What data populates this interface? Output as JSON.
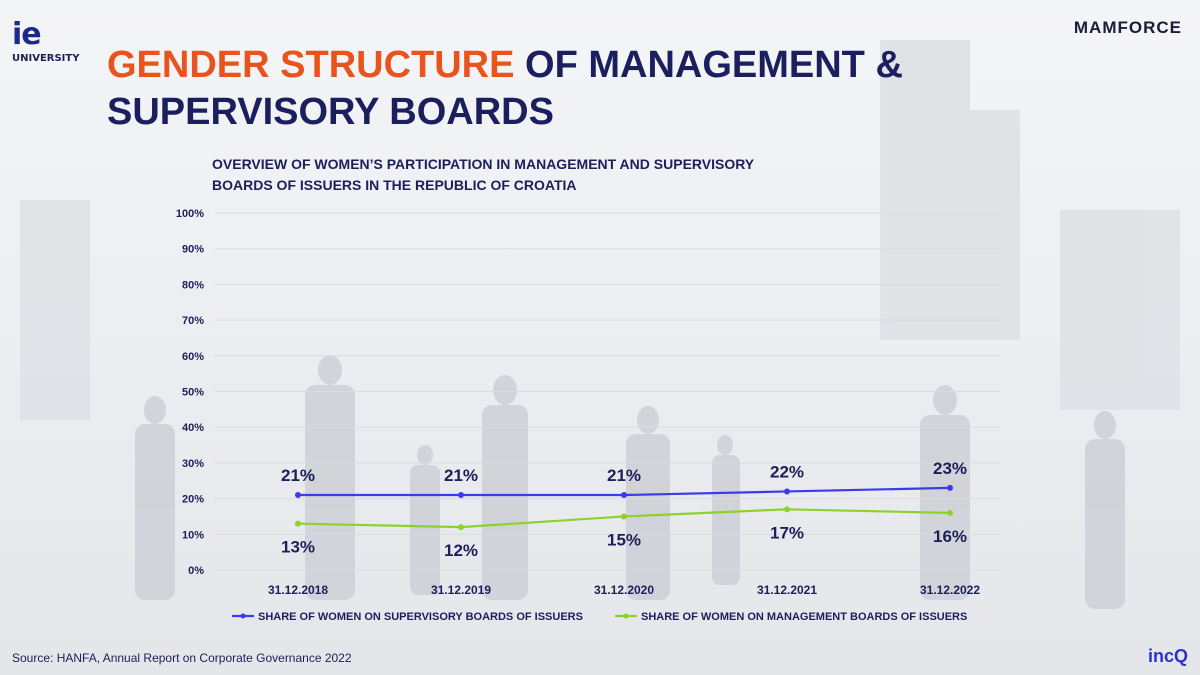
{
  "branding": {
    "ie_logo": "ie",
    "ie_sub": "UNIVERSITY",
    "mamforce": "MAMFORCE",
    "incq": "incQ"
  },
  "title": {
    "accent": "GENDER STRUCTURE",
    "rest": " OF MANAGEMENT & SUPERVISORY BOARDS"
  },
  "source": "Source: HANFA, Annual Report on Corporate Governance 2022",
  "colors": {
    "accent_orange": "#e9531d",
    "navy": "#1b1f5e",
    "supervisory_line": "#3b3be8",
    "management_line": "#8dd22c"
  },
  "chart_data": {
    "type": "line",
    "title": "OVERVIEW OF WOMEN’S PARTICIPATION IN MANAGEMENT AND SUPERVISORY BOARDS OF ISSUERS IN THE REPUBLIC OF CROATIA",
    "categories": [
      "31.12.2018",
      "31.12.2019",
      "31.12.2020",
      "31.12.2021",
      "31.12.2022"
    ],
    "series": [
      {
        "name": "SHARE OF WOMEN ON SUPERVISORY BOARDS OF ISSUERS",
        "values": [
          21,
          21,
          21,
          22,
          23
        ],
        "labels": [
          "21%",
          "21%",
          "21%",
          "22%",
          "23%"
        ],
        "label_position": "above",
        "color": "#3b3be8"
      },
      {
        "name": "SHARE OF WOMEN ON MANAGEMENT BOARDS OF ISSUERS",
        "values": [
          13,
          12,
          15,
          17,
          16
        ],
        "labels": [
          "13%",
          "12%",
          "15%",
          "17%",
          "16%"
        ],
        "label_position": "below",
        "color": "#8dd22c"
      }
    ],
    "y_ticks": [
      "0%",
      "10%",
      "20%",
      "30%",
      "40%",
      "50%",
      "60%",
      "70%",
      "80%",
      "90%",
      "100%"
    ],
    "ylim": [
      0,
      100
    ],
    "grid": true,
    "legend": "bottom"
  }
}
